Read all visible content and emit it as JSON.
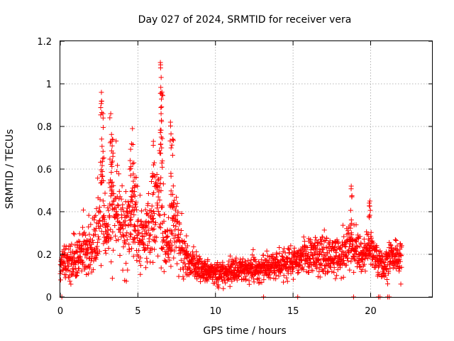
{
  "chart_data": {
    "type": "scatter",
    "title": "Day 027 of 2024, SRMTID for receiver vera",
    "xlabel": "GPS time / hours",
    "ylabel": "SRMTID / TECUs",
    "xlim": [
      0,
      24
    ],
    "ylim": [
      0,
      1.2
    ],
    "xticks": [
      0,
      5,
      10,
      15,
      20
    ],
    "xtick_labels": [
      "0",
      "5",
      "10",
      "15",
      "20"
    ],
    "yticks": [
      0,
      0.2,
      0.4,
      0.6,
      0.8,
      1.0,
      1.2
    ],
    "ytick_labels": [
      "0",
      "0.2",
      "0.4",
      "0.6",
      "0.8",
      "1",
      "1.2"
    ],
    "grid": true,
    "marker": "plus",
    "color": "#ff0000",
    "series": [
      {
        "name": "SRMTID",
        "profile": [
          [
            0.0,
            0.16
          ],
          [
            0.5,
            0.15
          ],
          [
            1.0,
            0.17
          ],
          [
            1.5,
            0.24
          ],
          [
            2.0,
            0.22
          ],
          [
            2.3,
            0.3
          ],
          [
            2.7,
            0.45
          ],
          [
            3.0,
            0.25
          ],
          [
            3.3,
            0.5
          ],
          [
            3.7,
            0.35
          ],
          [
            4.2,
            0.3
          ],
          [
            4.6,
            0.42
          ],
          [
            5.0,
            0.3
          ],
          [
            5.5,
            0.27
          ],
          [
            6.0,
            0.35
          ],
          [
            6.4,
            0.5
          ],
          [
            6.8,
            0.2
          ],
          [
            7.3,
            0.35
          ],
          [
            7.8,
            0.25
          ],
          [
            8.2,
            0.18
          ],
          [
            9.0,
            0.13
          ],
          [
            10.0,
            0.11
          ],
          [
            11.0,
            0.12
          ],
          [
            12.0,
            0.13
          ],
          [
            13.0,
            0.14
          ],
          [
            14.0,
            0.15
          ],
          [
            15.0,
            0.17
          ],
          [
            16.0,
            0.19
          ],
          [
            17.0,
            0.2
          ],
          [
            18.0,
            0.19
          ],
          [
            18.8,
            0.25
          ],
          [
            19.5,
            0.2
          ],
          [
            20.0,
            0.22
          ],
          [
            20.5,
            0.16
          ],
          [
            21.0,
            0.16
          ],
          [
            21.5,
            0.18
          ],
          [
            22.0,
            0.18
          ]
        ],
        "peaks": [
          {
            "x": 2.65,
            "y": 0.96
          },
          {
            "x": 2.75,
            "y": 0.86
          },
          {
            "x": 3.25,
            "y": 0.86
          },
          {
            "x": 3.35,
            "y": 0.74
          },
          {
            "x": 4.5,
            "y": 0.64
          },
          {
            "x": 4.65,
            "y": 0.79
          },
          {
            "x": 4.8,
            "y": 0.56
          },
          {
            "x": 6.0,
            "y": 0.73
          },
          {
            "x": 6.45,
            "y": 1.1
          },
          {
            "x": 6.5,
            "y": 1.03
          },
          {
            "x": 6.55,
            "y": 0.95
          },
          {
            "x": 7.1,
            "y": 0.82
          },
          {
            "x": 7.25,
            "y": 0.74
          },
          {
            "x": 18.75,
            "y": 0.52
          },
          {
            "x": 19.95,
            "y": 0.45
          }
        ],
        "zero_points": [
          0.1,
          13.1,
          15.3,
          18.9,
          20.5,
          20.6,
          21.1,
          21.2
        ]
      }
    ]
  }
}
